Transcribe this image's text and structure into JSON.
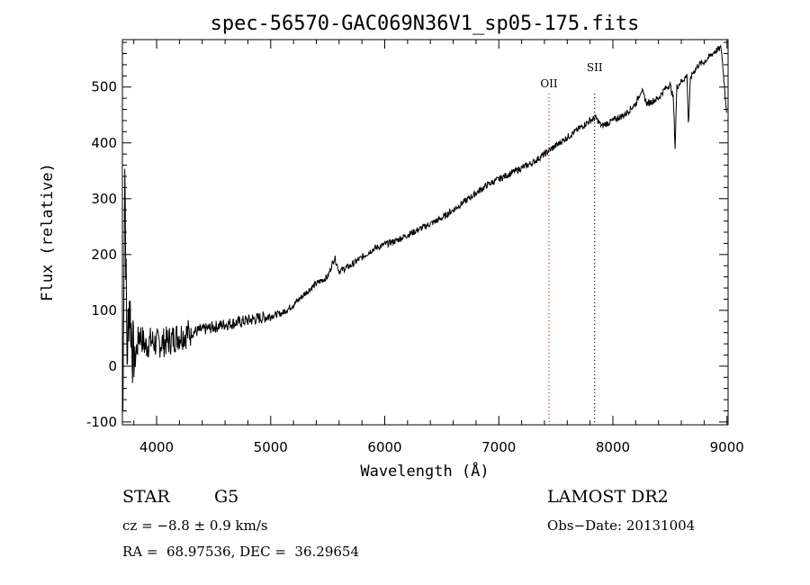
{
  "chart_data": {
    "type": "line",
    "title": "spec-56570-GAC069N36V1_sp05-175.fits",
    "xlabel": "Wavelength (Å)",
    "ylabel": "Flux (relative)",
    "xlim": [
      3700,
      9010
    ],
    "ylim": [
      -105,
      585
    ],
    "xticks": [
      4000,
      5000,
      6000,
      7000,
      8000,
      9000
    ],
    "yticks": [
      -100,
      0,
      100,
      200,
      300,
      400,
      500
    ],
    "grid": false,
    "line_color": "#000000",
    "series": [
      {
        "x": [
          3705,
          3720,
          3740,
          3760,
          3800,
          3850,
          3900,
          3950,
          4000,
          4100,
          4200,
          4300,
          4400,
          4500,
          4600,
          4700,
          4800,
          4900,
          5000,
          5100,
          5200,
          5300,
          5400,
          5500,
          5560,
          5600,
          5700,
          5800,
          5900,
          6000,
          6100,
          6200,
          6300,
          6400,
          6500,
          6600,
          6700,
          6800,
          6900,
          7000,
          7100,
          7200,
          7300,
          7400,
          7500,
          7600,
          7700,
          7800,
          7850,
          7900,
          8000,
          8100,
          8200,
          8250,
          8300,
          8400,
          8450,
          8500,
          8530,
          8545,
          8560,
          8600,
          8650,
          8662,
          8680,
          8700,
          8750,
          8800,
          8850,
          8900,
          8950,
          9000
        ],
        "y": [
          -80,
          380,
          10,
          120,
          0,
          60,
          35,
          45,
          40,
          45,
          55,
          60,
          65,
          70,
          75,
          78,
          82,
          86,
          90,
          95,
          110,
          130,
          148,
          160,
          195,
          170,
          180,
          195,
          210,
          218,
          225,
          235,
          245,
          255,
          265,
          280,
          295,
          310,
          325,
          335,
          345,
          355,
          365,
          380,
          395,
          410,
          425,
          440,
          445,
          430,
          440,
          450,
          470,
          495,
          470,
          480,
          495,
          505,
          480,
          390,
          500,
          510,
          520,
          430,
          515,
          525,
          540,
          545,
          555,
          565,
          570,
          450
        ]
      }
    ],
    "lines": [
      {
        "label": "OII",
        "x": 7440,
        "color": "#ff0000"
      },
      {
        "label": "SII",
        "x": 7840,
        "color": "#000000"
      }
    ]
  },
  "info": {
    "object_class": "STAR",
    "subclass": "G5",
    "survey": "LAMOST DR2",
    "cz": "cz = −8.8 ± 0.9 km/s",
    "obs_date": "Obs−Date: 20131004",
    "coords": "RA =  68.97536, DEC =  36.29654"
  }
}
